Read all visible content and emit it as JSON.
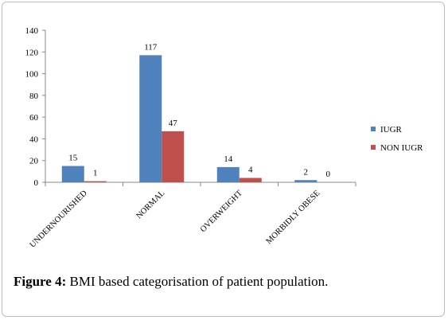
{
  "figure": {
    "label": "Figure 4:",
    "caption": " BMI based categorisation of patient population."
  },
  "chart_data": {
    "type": "bar",
    "categories": [
      "UNDERNOURISHED",
      "NORMAL",
      "OVERWEIGHT",
      "MORBIDLY OBESE"
    ],
    "series": [
      {
        "name": "IUGR",
        "values": [
          15,
          117,
          14,
          2
        ],
        "color": "#4f81bd"
      },
      {
        "name": "NON IUGR",
        "values": [
          1,
          47,
          4,
          0
        ],
        "color": "#c0504d"
      }
    ],
    "yticks": [
      0,
      20,
      40,
      60,
      80,
      100,
      120,
      140
    ],
    "ylim": [
      0,
      140
    ],
    "grid": false,
    "legend": "right",
    "data_labels": true
  }
}
